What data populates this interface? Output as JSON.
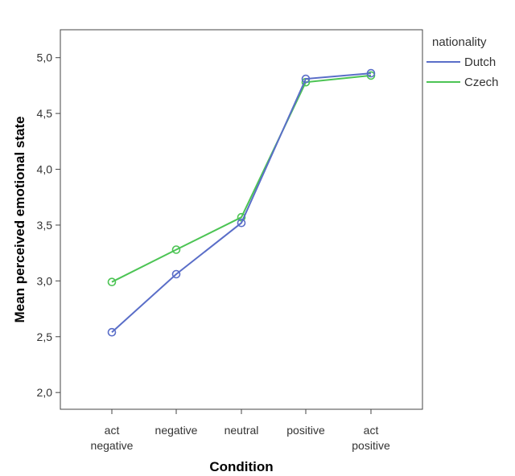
{
  "chart_data": {
    "type": "line",
    "title": "",
    "xlabel": "Condition",
    "ylabel": "Mean perceived emotional state",
    "categories": [
      [
        "act",
        "negative"
      ],
      [
        "negative"
      ],
      [
        "neutral"
      ],
      [
        "positive"
      ],
      [
        "act",
        "positive"
      ]
    ],
    "yticks": [
      "2,0",
      "2,5",
      "3,0",
      "3,5",
      "4,0",
      "4,5",
      "5,0"
    ],
    "ylim": [
      1.85,
      5.25
    ],
    "grid": false,
    "legend": {
      "title": "nationality",
      "placement": "top-right"
    },
    "series": [
      {
        "name": "Dutch",
        "color": "#5a6ec8",
        "values": [
          2.54,
          3.06,
          3.52,
          4.81,
          4.86
        ]
      },
      {
        "name": "Czech",
        "color": "#4cc454",
        "values": [
          2.99,
          3.28,
          3.57,
          4.78,
          4.84
        ]
      }
    ]
  }
}
